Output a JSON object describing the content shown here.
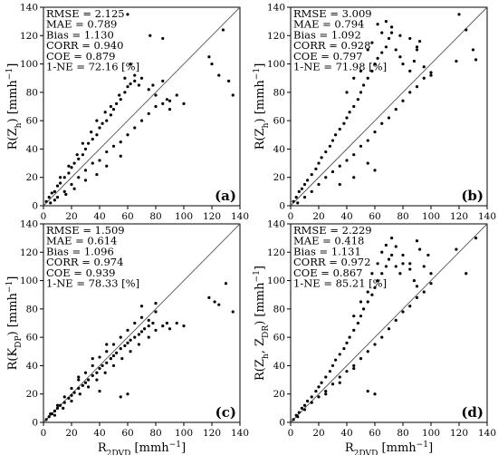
{
  "chart_data": [
    {
      "type": "scatter",
      "panel_label": "(a)",
      "ylabel": "R(Z_h) [mmh^-1]",
      "xlabel": "",
      "xlim": [
        0,
        140
      ],
      "ylim": [
        0,
        140
      ],
      "xticks": [
        0,
        20,
        40,
        60,
        80,
        100,
        120,
        140
      ],
      "yticks": [
        0,
        20,
        40,
        60,
        80,
        100,
        120,
        140
      ],
      "one_to_one_line": true,
      "stats": [
        "RMSE = 2.125",
        "MAE = 0.789",
        "Bias = 1.130",
        "CORR = 0.940",
        "COE = 0.879",
        "1-NE = 72.16 [%]"
      ],
      "points": [
        [
          2,
          3
        ],
        [
          4,
          6
        ],
        [
          6,
          9
        ],
        [
          8,
          10
        ],
        [
          10,
          14
        ],
        [
          12,
          16
        ],
        [
          15,
          20
        ],
        [
          18,
          23
        ],
        [
          20,
          27
        ],
        [
          22,
          30
        ],
        [
          25,
          33
        ],
        [
          28,
          36
        ],
        [
          30,
          40
        ],
        [
          32,
          44
        ],
        [
          35,
          47
        ],
        [
          38,
          50
        ],
        [
          40,
          55
        ],
        [
          42,
          58
        ],
        [
          45,
          60
        ],
        [
          48,
          64
        ],
        [
          50,
          68
        ],
        [
          52,
          72
        ],
        [
          55,
          75
        ],
        [
          58,
          80
        ],
        [
          60,
          84
        ],
        [
          62,
          86
        ],
        [
          65,
          88
        ],
        [
          68,
          85
        ],
        [
          70,
          90
        ],
        [
          75,
          82
        ],
        [
          78,
          85
        ],
        [
          80,
          78
        ],
        [
          85,
          88
        ],
        [
          88,
          75
        ],
        [
          90,
          68
        ],
        [
          95,
          78
        ],
        [
          100,
          72
        ],
        [
          5,
          2
        ],
        [
          10,
          6
        ],
        [
          15,
          10
        ],
        [
          20,
          15
        ],
        [
          25,
          20
        ],
        [
          30,
          25
        ],
        [
          35,
          30
        ],
        [
          40,
          32
        ],
        [
          45,
          38
        ],
        [
          50,
          42
        ],
        [
          55,
          45
        ],
        [
          60,
          50
        ],
        [
          65,
          55
        ],
        [
          70,
          60
        ],
        [
          75,
          65
        ],
        [
          80,
          70
        ],
        [
          85,
          72
        ],
        [
          90,
          74
        ],
        [
          12,
          20
        ],
        [
          18,
          28
        ],
        [
          24,
          36
        ],
        [
          28,
          44
        ],
        [
          34,
          52
        ],
        [
          38,
          60
        ],
        [
          44,
          66
        ],
        [
          48,
          70
        ],
        [
          54,
          78
        ],
        [
          58,
          90
        ],
        [
          62,
          100
        ],
        [
          65,
          92
        ],
        [
          60,
          135
        ],
        [
          85,
          118
        ],
        [
          76,
          120
        ],
        [
          118,
          105
        ],
        [
          120,
          100
        ],
        [
          125,
          92
        ],
        [
          128,
          124
        ],
        [
          132,
          88
        ],
        [
          135,
          78
        ],
        [
          38,
          22
        ],
        [
          45,
          28
        ],
        [
          55,
          35
        ],
        [
          30,
          18
        ],
        [
          22,
          12
        ],
        [
          16,
          8
        ],
        [
          8,
          4
        ]
      ]
    },
    {
      "type": "scatter",
      "panel_label": "(b)",
      "ylabel": "R(Z_h) [mmh^-1]",
      "xlabel": "",
      "xlim": [
        0,
        140
      ],
      "ylim": [
        0,
        140
      ],
      "xticks": [
        0,
        20,
        40,
        60,
        80,
        100,
        120,
        140
      ],
      "yticks": [
        0,
        20,
        40,
        60,
        80,
        100,
        120,
        140
      ],
      "one_to_one_line": true,
      "stats": [
        "RMSE = 3.009",
        "MAE = 0.794",
        "Bias = 1.092",
        "CORR = 0.928",
        "COE = 0.797",
        "1-NE = 71.98 [%]"
      ],
      "points": [
        [
          2,
          3
        ],
        [
          4,
          6
        ],
        [
          6,
          10
        ],
        [
          8,
          12
        ],
        [
          10,
          15
        ],
        [
          12,
          18
        ],
        [
          15,
          22
        ],
        [
          18,
          26
        ],
        [
          20,
          30
        ],
        [
          22,
          34
        ],
        [
          25,
          38
        ],
        [
          28,
          42
        ],
        [
          30,
          46
        ],
        [
          32,
          50
        ],
        [
          35,
          54
        ],
        [
          38,
          58
        ],
        [
          40,
          62
        ],
        [
          42,
          66
        ],
        [
          45,
          70
        ],
        [
          48,
          75
        ],
        [
          50,
          80
        ],
        [
          52,
          85
        ],
        [
          55,
          90
        ],
        [
          58,
          95
        ],
        [
          60,
          100
        ],
        [
          62,
          104
        ],
        [
          65,
          108
        ],
        [
          68,
          112
        ],
        [
          70,
          118
        ],
        [
          72,
          122
        ],
        [
          75,
          110
        ],
        [
          78,
          105
        ],
        [
          80,
          100
        ],
        [
          85,
          95
        ],
        [
          88,
          102
        ],
        [
          90,
          110
        ],
        [
          95,
          98
        ],
        [
          100,
          92
        ],
        [
          5,
          2
        ],
        [
          10,
          6
        ],
        [
          15,
          10
        ],
        [
          20,
          15
        ],
        [
          25,
          20
        ],
        [
          30,
          24
        ],
        [
          35,
          28
        ],
        [
          40,
          32
        ],
        [
          45,
          36
        ],
        [
          50,
          42
        ],
        [
          55,
          46
        ],
        [
          60,
          52
        ],
        [
          65,
          58
        ],
        [
          70,
          62
        ],
        [
          75,
          68
        ],
        [
          80,
          74
        ],
        [
          85,
          80
        ],
        [
          90,
          84
        ],
        [
          95,
          90
        ],
        [
          100,
          94
        ],
        [
          40,
          80
        ],
        [
          45,
          90
        ],
        [
          50,
          95
        ],
        [
          55,
          110
        ],
        [
          58,
          115
        ],
        [
          62,
          128
        ],
        [
          65,
          122
        ],
        [
          68,
          130
        ],
        [
          72,
          126
        ],
        [
          78,
          120
        ],
        [
          85,
          118
        ],
        [
          90,
          112
        ],
        [
          92,
          116
        ],
        [
          60,
          25
        ],
        [
          55,
          30
        ],
        [
          45,
          20
        ],
        [
          35,
          15
        ],
        [
          118,
          102
        ],
        [
          120,
          135
        ],
        [
          125,
          124
        ],
        [
          130,
          110
        ],
        [
          132,
          103
        ]
      ]
    },
    {
      "type": "scatter",
      "panel_label": "(c)",
      "ylabel": "R(K_DP) [mmh^-1]",
      "xlabel": "R_2DVD [mmh^-1]",
      "xlim": [
        0,
        140
      ],
      "ylim": [
        0,
        140
      ],
      "xticks": [
        0,
        20,
        40,
        60,
        80,
        100,
        120,
        140
      ],
      "yticks": [
        0,
        20,
        40,
        60,
        80,
        100,
        120,
        140
      ],
      "one_to_one_line": true,
      "stats": [
        "RMSE = 1.509",
        "MAE = 0.614",
        "Bias = 1.096",
        "CORR = 0.974",
        "COE = 0.939",
        "1-NE = 78.33 [%]"
      ],
      "points": [
        [
          2,
          2
        ],
        [
          4,
          4
        ],
        [
          6,
          6
        ],
        [
          8,
          8
        ],
        [
          10,
          10
        ],
        [
          12,
          12
        ],
        [
          15,
          14
        ],
        [
          18,
          17
        ],
        [
          20,
          19
        ],
        [
          22,
          21
        ],
        [
          25,
          24
        ],
        [
          28,
          26
        ],
        [
          30,
          28
        ],
        [
          32,
          30
        ],
        [
          35,
          33
        ],
        [
          38,
          35
        ],
        [
          40,
          38
        ],
        [
          42,
          40
        ],
        [
          45,
          42
        ],
        [
          48,
          45
        ],
        [
          50,
          47
        ],
        [
          52,
          49
        ],
        [
          55,
          52
        ],
        [
          58,
          54
        ],
        [
          60,
          56
        ],
        [
          62,
          58
        ],
        [
          65,
          60
        ],
        [
          68,
          62
        ],
        [
          70,
          64
        ],
        [
          72,
          66
        ],
        [
          75,
          68
        ],
        [
          78,
          70
        ],
        [
          80,
          65
        ],
        [
          85,
          68
        ],
        [
          88,
          70
        ],
        [
          90,
          66
        ],
        [
          95,
          70
        ],
        [
          100,
          68
        ],
        [
          5,
          6
        ],
        [
          10,
          12
        ],
        [
          15,
          18
        ],
        [
          20,
          24
        ],
        [
          25,
          30
        ],
        [
          30,
          35
        ],
        [
          35,
          40
        ],
        [
          40,
          46
        ],
        [
          45,
          50
        ],
        [
          50,
          55
        ],
        [
          55,
          60
        ],
        [
          60,
          65
        ],
        [
          65,
          70
        ],
        [
          70,
          74
        ],
        [
          75,
          72
        ],
        [
          80,
          78
        ],
        [
          8,
          5
        ],
        [
          14,
          10
        ],
        [
          20,
          15
        ],
        [
          26,
          20
        ],
        [
          32,
          25
        ],
        [
          38,
          30
        ],
        [
          44,
          35
        ],
        [
          50,
          40
        ],
        [
          56,
          45
        ],
        [
          62,
          50
        ],
        [
          68,
          55
        ],
        [
          75,
          60
        ],
        [
          55,
          18
        ],
        [
          60,
          20
        ],
        [
          40,
          22
        ],
        [
          70,
          82
        ],
        [
          80,
          84
        ],
        [
          118,
          88
        ],
        [
          122,
          85
        ],
        [
          125,
          83
        ],
        [
          130,
          98
        ],
        [
          135,
          78
        ],
        [
          25,
          32
        ],
        [
          35,
          45
        ],
        [
          45,
          55
        ]
      ]
    },
    {
      "type": "scatter",
      "panel_label": "(d)",
      "ylabel": "R(Z_h, Z_DR) [mmh^-1]",
      "xlabel": "R_2DVD [mmh^-1]",
      "xlim": [
        0,
        140
      ],
      "ylim": [
        0,
        140
      ],
      "xticks": [
        0,
        20,
        40,
        60,
        80,
        100,
        120,
        140
      ],
      "yticks": [
        0,
        20,
        40,
        60,
        80,
        100,
        120,
        140
      ],
      "one_to_one_line": true,
      "stats": [
        "RMSE = 2.229",
        "MAE = 0.418",
        "Bias = 1.131",
        "CORR = 0.972",
        "COE = 0.867",
        "1-NE = 85.21 [%]"
      ],
      "points": [
        [
          2,
          2
        ],
        [
          4,
          5
        ],
        [
          6,
          7
        ],
        [
          8,
          10
        ],
        [
          10,
          12
        ],
        [
          12,
          15
        ],
        [
          15,
          18
        ],
        [
          18,
          22
        ],
        [
          20,
          25
        ],
        [
          22,
          28
        ],
        [
          25,
          32
        ],
        [
          28,
          36
        ],
        [
          30,
          40
        ],
        [
          32,
          44
        ],
        [
          35,
          48
        ],
        [
          38,
          52
        ],
        [
          40,
          56
        ],
        [
          42,
          60
        ],
        [
          45,
          65
        ],
        [
          48,
          70
        ],
        [
          50,
          75
        ],
        [
          52,
          80
        ],
        [
          55,
          85
        ],
        [
          58,
          90
        ],
        [
          60,
          95
        ],
        [
          62,
          100
        ],
        [
          65,
          105
        ],
        [
          68,
          110
        ],
        [
          70,
          115
        ],
        [
          72,
          118
        ],
        [
          75,
          110
        ],
        [
          78,
          105
        ],
        [
          80,
          112
        ],
        [
          85,
          108
        ],
        [
          88,
          100
        ],
        [
          90,
          96
        ],
        [
          95,
          110
        ],
        [
          100,
          105
        ],
        [
          5,
          4
        ],
        [
          10,
          9
        ],
        [
          15,
          14
        ],
        [
          20,
          18
        ],
        [
          25,
          22
        ],
        [
          30,
          27
        ],
        [
          35,
          32
        ],
        [
          40,
          36
        ],
        [
          45,
          40
        ],
        [
          50,
          45
        ],
        [
          55,
          50
        ],
        [
          60,
          55
        ],
        [
          65,
          60
        ],
        [
          70,
          66
        ],
        [
          75,
          72
        ],
        [
          80,
          78
        ],
        [
          85,
          82
        ],
        [
          90,
          88
        ],
        [
          95,
          92
        ],
        [
          100,
          98
        ],
        [
          45,
          75
        ],
        [
          50,
          85
        ],
        [
          55,
          92
        ],
        [
          58,
          105
        ],
        [
          62,
          112
        ],
        [
          65,
          120
        ],
        [
          68,
          125
        ],
        [
          72,
          130
        ],
        [
          75,
          124
        ],
        [
          80,
          118
        ],
        [
          85,
          112
        ],
        [
          90,
          128
        ],
        [
          92,
          122
        ],
        [
          98,
          118
        ],
        [
          55,
          22
        ],
        [
          60,
          20
        ],
        [
          118,
          122
        ],
        [
          125,
          105
        ],
        [
          132,
          130
        ],
        [
          35,
          28
        ],
        [
          45,
          38
        ],
        [
          25,
          20
        ]
      ]
    }
  ]
}
